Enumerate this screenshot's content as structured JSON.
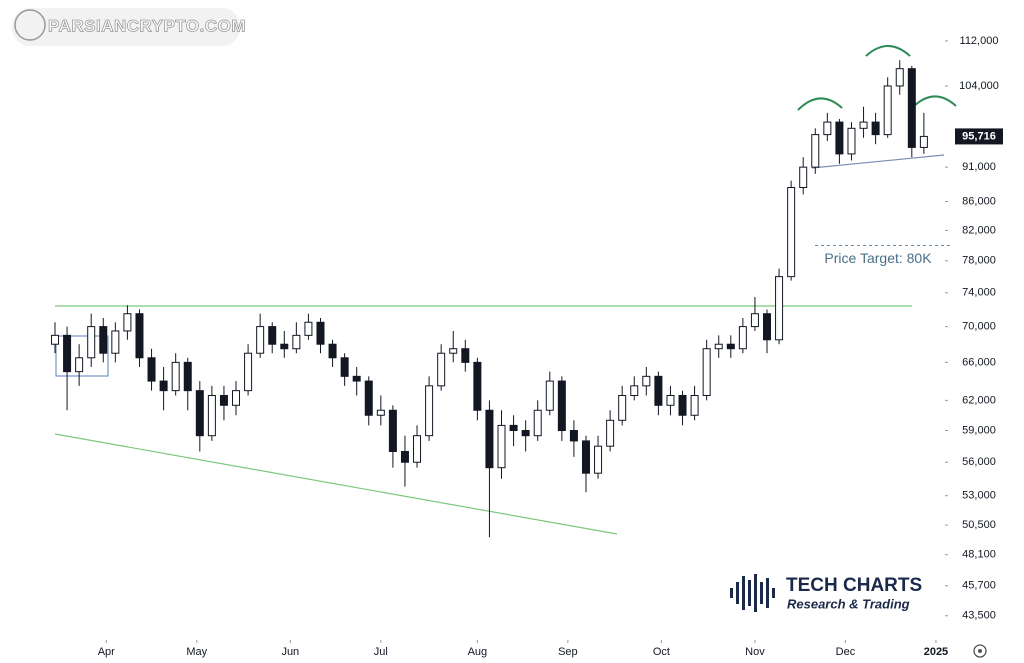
{
  "watermark": "PARSIANCRYPTO.COM",
  "logo": {
    "title": "TECH CHARTS",
    "subtitle": "Research & Trading"
  },
  "chart_data": {
    "type": "candlestick",
    "log_scale": true,
    "up_color": "#ffffff",
    "down_color": "#131722",
    "x": [
      0,
      4,
      8,
      12,
      16,
      20,
      24,
      28,
      32,
      36,
      40,
      44,
      48,
      52,
      56,
      60,
      64,
      68,
      72,
      76,
      80,
      84,
      88,
      92,
      96,
      100,
      104,
      108,
      112,
      116,
      120,
      124,
      128,
      132,
      136,
      140,
      144,
      148,
      152,
      156,
      160,
      164,
      168,
      172,
      176,
      180,
      184,
      188,
      192,
      196,
      200,
      204,
      208,
      212,
      216,
      220,
      224,
      228,
      232,
      236,
      240,
      244,
      248,
      252,
      256,
      260,
      264,
      268,
      272,
      276,
      280,
      284,
      288
    ],
    "open": [
      68000,
      69000,
      65000,
      66500,
      70000,
      67000,
      69500,
      71500,
      66500,
      64000,
      63000,
      66000,
      63000,
      58500,
      62500,
      61500,
      63000,
      67000,
      70000,
      68000,
      67500,
      69000,
      70500,
      68000,
      66500,
      64500,
      64000,
      60500,
      61000,
      57000,
      56000,
      58500,
      63500,
      67000,
      67500,
      66000,
      61000,
      55500,
      59500,
      59000,
      58500,
      61000,
      64000,
      59000,
      58000,
      55000,
      57500,
      60000,
      62500,
      63500,
      64500,
      61500,
      62500,
      60500,
      62500,
      67500,
      68000,
      67500,
      70000,
      71500,
      68500,
      76000,
      88000,
      91000,
      96000,
      98000,
      93000,
      97000,
      98000,
      96000,
      104000,
      107000,
      94000
    ],
    "high": [
      70500,
      70000,
      68000,
      71500,
      71000,
      70500,
      72500,
      72000,
      67500,
      65500,
      67000,
      66500,
      64000,
      63500,
      63500,
      64000,
      68000,
      71500,
      70500,
      69500,
      70500,
      71500,
      71000,
      68500,
      67000,
      65500,
      64500,
      62500,
      61500,
      58500,
      59500,
      64500,
      68000,
      69500,
      68500,
      66500,
      62000,
      61000,
      60500,
      60000,
      62000,
      65000,
      64500,
      60000,
      58500,
      58500,
      61000,
      63500,
      64500,
      65500,
      65000,
      63500,
      63000,
      63500,
      68500,
      69000,
      69000,
      71000,
      73500,
      72000,
      77000,
      89000,
      92500,
      97000,
      99500,
      98500,
      98000,
      100500,
      99500,
      105500,
      108500,
      107500,
      99500
    ],
    "low": [
      67000,
      61000,
      63500,
      65500,
      66000,
      66000,
      68500,
      65500,
      63000,
      61000,
      62500,
      61000,
      57000,
      58000,
      60000,
      60500,
      62500,
      66500,
      67000,
      66500,
      67000,
      68500,
      67000,
      65500,
      63500,
      62500,
      59500,
      59500,
      55500,
      53800,
      55500,
      58000,
      63000,
      66000,
      65000,
      60000,
      49500,
      54500,
      57500,
      57000,
      58000,
      60500,
      58000,
      56500,
      53300,
      54500,
      57000,
      59500,
      62000,
      62500,
      60500,
      60500,
      59500,
      60000,
      62000,
      66500,
      66500,
      67000,
      69500,
      67000,
      68000,
      75500,
      87000,
      90000,
      95000,
      91500,
      92000,
      95500,
      94500,
      95500,
      102500,
      92500,
      93000
    ],
    "close": [
      69000,
      65000,
      66500,
      70000,
      67000,
      69500,
      71500,
      66500,
      64000,
      63000,
      66000,
      63000,
      58500,
      62500,
      61500,
      63000,
      67000,
      70000,
      68000,
      67500,
      69000,
      70500,
      68000,
      66500,
      64500,
      64000,
      60500,
      61000,
      57000,
      56000,
      58500,
      63500,
      67000,
      67500,
      66000,
      61000,
      55500,
      59500,
      59000,
      58500,
      61000,
      64000,
      59000,
      58000,
      55000,
      57500,
      60000,
      62500,
      63500,
      64500,
      61500,
      62500,
      60500,
      62500,
      67500,
      68000,
      67500,
      70000,
      71500,
      68500,
      76000,
      88000,
      91000,
      96000,
      98000,
      93000,
      97000,
      98000,
      96000,
      104000,
      107000,
      94000,
      95716
    ],
    "xlim": [
      0,
      295
    ],
    "xticks": [
      {
        "value": 17,
        "label": "Apr"
      },
      {
        "value": 47,
        "label": "May"
      },
      {
        "value": 78,
        "label": "Jun"
      },
      {
        "value": 108,
        "label": "Jul"
      },
      {
        "value": 140,
        "label": "Aug"
      },
      {
        "value": 170,
        "label": "Sep"
      },
      {
        "value": 201,
        "label": "Oct"
      },
      {
        "value": 232,
        "label": "Nov"
      },
      {
        "value": 262,
        "label": "Dec"
      },
      {
        "value": 292,
        "label": "2025"
      }
    ],
    "ylim": [
      41800,
      119800
    ],
    "yticks": [
      {
        "value": 43500,
        "label": "43,500"
      },
      {
        "value": 45700,
        "label": "45,700"
      },
      {
        "value": 48100,
        "label": "48,100"
      },
      {
        "value": 50500,
        "label": "50,500"
      },
      {
        "value": 53000,
        "label": "53,000"
      },
      {
        "value": 56000,
        "label": "56,000"
      },
      {
        "value": 59000,
        "label": "59,000"
      },
      {
        "value": 62000,
        "label": "62,000"
      },
      {
        "value": 66000,
        "label": "66,000"
      },
      {
        "value": 70000,
        "label": "70,000"
      },
      {
        "value": 74000,
        "label": "74,000"
      },
      {
        "value": 78000,
        "label": "78,000"
      },
      {
        "value": 82000,
        "label": "82,000"
      },
      {
        "value": 86000,
        "label": "86,000"
      },
      {
        "value": 91000,
        "label": "91,000"
      },
      {
        "value": 104000,
        "label": "104,000"
      },
      {
        "value": 112000,
        "label": "112,000"
      }
    ],
    "last_price": {
      "value": 95716,
      "label": "95,716"
    },
    "price_target": {
      "value": 80000,
      "label": "Price Target: 80K"
    }
  }
}
